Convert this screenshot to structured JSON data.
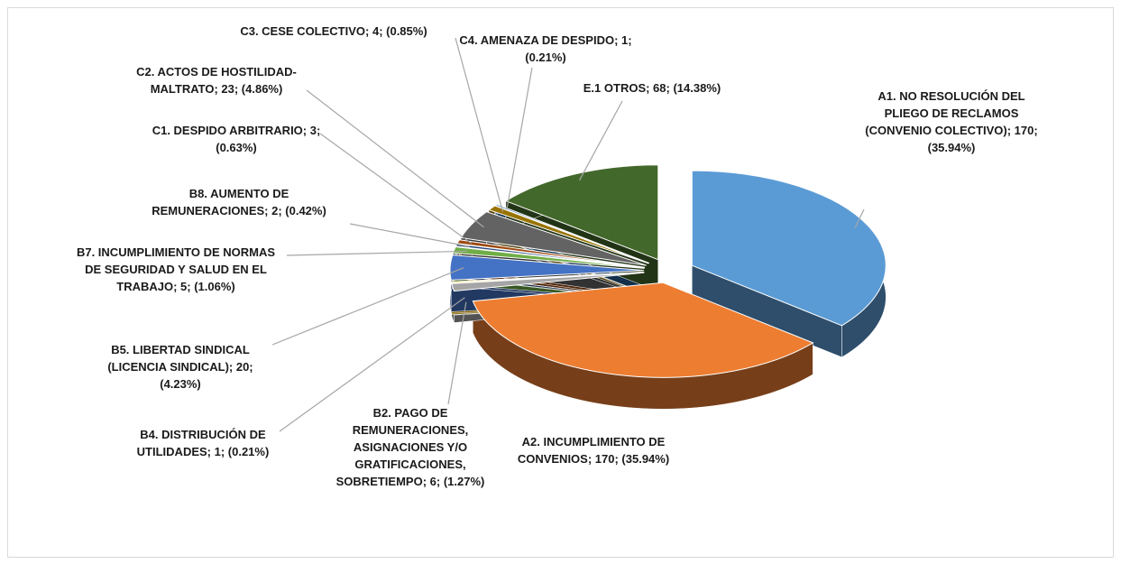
{
  "chart_data": {
    "type": "pie",
    "labels": [
      "A1. NO RESOLUCIÓN DEL PLIEGO DE RECLAMOS (CONVENIO COLECTIVO); 170; (35.94%)",
      "A2. INCUMPLIMIENTO DE CONVENIOS; 170; (35.94%)",
      "B2. PAGO DE REMUNERACIONES, ASIGNACIONES Y/O GRATIFICACIONES, SOBRETIEMPO; 6; (1.27%)",
      "B4. DISTRIBUCIÓN DE UTILIDADES; 1; (0.21%)",
      "B5. LIBERTAD SINDICAL (LICENCIA SINDICAL); 20; (4.23%)",
      "B7. INCUMPLIMIENTO DE NORMAS DE SEGURIDAD Y SALUD EN EL TRABAJO; 5; (1.06%)",
      "B8. AUMENTO DE REMUNERACIONES; 2; (0.42%)",
      "C1. DESPIDO ARBITRARIO; 3; (0.63%)",
      "C2. ACTOS DE HOSTILIDAD-MALTRATO; 23; (4.86%)",
      "C3. CESE COLECTIVO; 4; (0.85%)",
      "C4. AMENAZA DE DESPIDO; 1; (0.21%)",
      "E.1 OTROS; 68; (14.38%)"
    ],
    "values": [
      170,
      170,
      6,
      1,
      20,
      5,
      2,
      3,
      23,
      4,
      1,
      68
    ],
    "colors": [
      "#5b9bd5",
      "#ed7d31",
      "#a5a5a5",
      "#ffc000",
      "#4472c4",
      "#70ad47",
      "#264478",
      "#9e480e",
      "#636363",
      "#997300",
      "#255e91",
      "#43682b"
    ]
  }
}
